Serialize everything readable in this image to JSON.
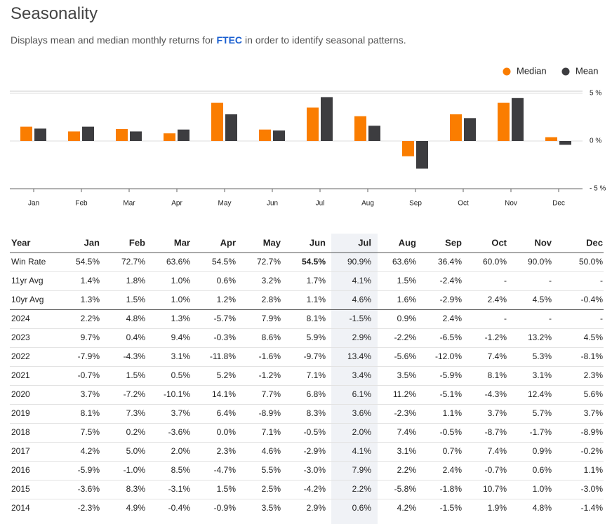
{
  "header": {
    "title": "Seasonality",
    "subtitle_before": "Displays mean and median monthly returns for",
    "ticker": "FTEC",
    "subtitle_after": "in order to identify seasonal patterns."
  },
  "chart_data": {
    "type": "bar",
    "categories": [
      "Jan",
      "Feb",
      "Mar",
      "Apr",
      "May",
      "Jun",
      "Jul",
      "Aug",
      "Sep",
      "Oct",
      "Nov",
      "Dec"
    ],
    "series": [
      {
        "name": "Median",
        "color": "#fa7d00",
        "values": [
          1.5,
          1.0,
          1.25,
          0.8,
          4.0,
          1.2,
          3.5,
          2.6,
          -1.6,
          2.8,
          4.0,
          0.4
        ]
      },
      {
        "name": "Mean",
        "color": "#3d3d40",
        "values": [
          1.3,
          1.5,
          1.0,
          1.2,
          2.8,
          1.1,
          4.6,
          1.6,
          -2.9,
          2.4,
          4.5,
          -0.4
        ]
      }
    ],
    "ylim": [
      -5,
      5
    ],
    "yticks": [
      {
        "value": 5,
        "label": "5 %"
      },
      {
        "value": 0,
        "label": "0 %"
      },
      {
        "value": -5,
        "label": "- 5 %"
      }
    ],
    "legend": "top-right"
  },
  "table": {
    "header": [
      "Year",
      "Jan",
      "Feb",
      "Mar",
      "Apr",
      "May",
      "Jun",
      "Jul",
      "Aug",
      "Sep",
      "Oct",
      "Nov",
      "Dec"
    ],
    "rows": [
      [
        "Win Rate",
        "54.5%",
        "72.7%",
        "63.6%",
        "54.5%",
        "72.7%",
        "54.5%",
        "90.9%",
        "63.6%",
        "36.4%",
        "60.0%",
        "90.0%",
        "50.0%"
      ],
      [
        "11yr Avg",
        "1.4%",
        "1.8%",
        "1.0%",
        "0.6%",
        "3.2%",
        "1.7%",
        "4.1%",
        "1.5%",
        "-2.4%",
        "-",
        "-",
        "-"
      ],
      [
        "10yr Avg",
        "1.3%",
        "1.5%",
        "1.0%",
        "1.2%",
        "2.8%",
        "1.1%",
        "4.6%",
        "1.6%",
        "-2.9%",
        "2.4%",
        "4.5%",
        "-0.4%"
      ],
      [
        "2024",
        "2.2%",
        "4.8%",
        "1.3%",
        "-5.7%",
        "7.9%",
        "8.1%",
        "-1.5%",
        "0.9%",
        "2.4%",
        "-",
        "-",
        "-"
      ],
      [
        "2023",
        "9.7%",
        "0.4%",
        "9.4%",
        "-0.3%",
        "8.6%",
        "5.9%",
        "2.9%",
        "-2.2%",
        "-6.5%",
        "-1.2%",
        "13.2%",
        "4.5%"
      ],
      [
        "2022",
        "-7.9%",
        "-4.3%",
        "3.1%",
        "-11.8%",
        "-1.6%",
        "-9.7%",
        "13.4%",
        "-5.6%",
        "-12.0%",
        "7.4%",
        "5.3%",
        "-8.1%"
      ],
      [
        "2021",
        "-0.7%",
        "1.5%",
        "0.5%",
        "5.2%",
        "-1.2%",
        "7.1%",
        "3.4%",
        "3.5%",
        "-5.9%",
        "8.1%",
        "3.1%",
        "2.3%"
      ],
      [
        "2020",
        "3.7%",
        "-7.2%",
        "-10.1%",
        "14.1%",
        "7.7%",
        "6.8%",
        "6.1%",
        "11.2%",
        "-5.1%",
        "-4.3%",
        "12.4%",
        "5.6%"
      ],
      [
        "2019",
        "8.1%",
        "7.3%",
        "3.7%",
        "6.4%",
        "-8.9%",
        "8.3%",
        "3.6%",
        "-2.3%",
        "1.1%",
        "3.7%",
        "5.7%",
        "3.7%"
      ],
      [
        "2018",
        "7.5%",
        "0.2%",
        "-3.6%",
        "0.0%",
        "7.1%",
        "-0.5%",
        "2.0%",
        "7.4%",
        "-0.5%",
        "-8.7%",
        "-1.7%",
        "-8.9%"
      ],
      [
        "2017",
        "4.2%",
        "5.0%",
        "2.0%",
        "2.3%",
        "4.6%",
        "-2.9%",
        "4.1%",
        "3.1%",
        "0.7%",
        "7.4%",
        "0.9%",
        "-0.2%"
      ],
      [
        "2016",
        "-5.9%",
        "-1.0%",
        "8.5%",
        "-4.7%",
        "5.5%",
        "-3.0%",
        "7.9%",
        "2.2%",
        "2.4%",
        "-0.7%",
        "0.6%",
        "1.1%"
      ],
      [
        "2015",
        "-3.6%",
        "8.3%",
        "-3.1%",
        "1.5%",
        "2.5%",
        "-4.2%",
        "2.2%",
        "-5.8%",
        "-1.8%",
        "10.7%",
        "1.0%",
        "-3.0%"
      ],
      [
        "2014",
        "-2.3%",
        "4.9%",
        "-0.4%",
        "-0.9%",
        "3.5%",
        "2.9%",
        "0.6%",
        "4.2%",
        "-1.5%",
        "1.9%",
        "4.8%",
        "-1.4%"
      ]
    ]
  }
}
